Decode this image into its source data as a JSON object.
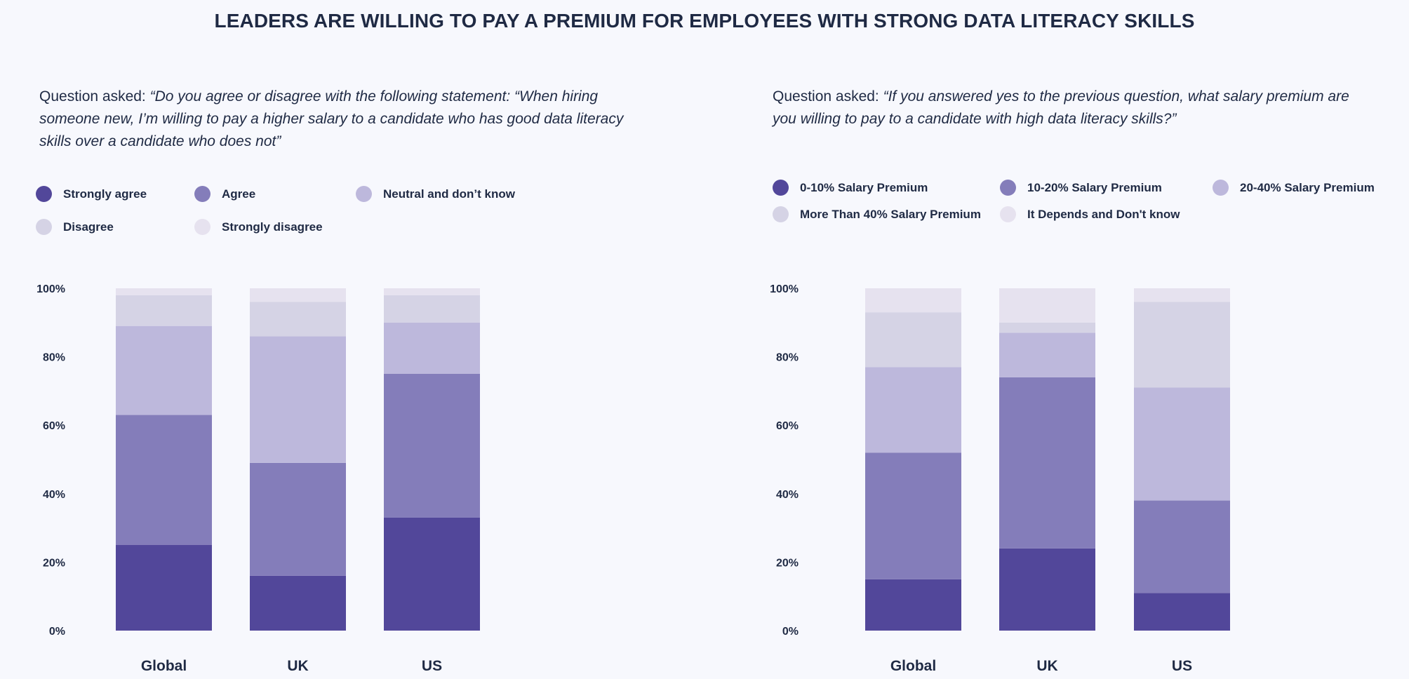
{
  "title": "LEADERS ARE WILLING TO PAY A PREMIUM FOR EMPLOYEES WITH STRONG DATA LITERACY SKILLS",
  "panels": [
    {
      "question_lead": "Question asked: ",
      "question_text": "“Do you agree or disagree with the following statement: “When hiring someone new, I’m willing to pay a higher salary to a candidate who has good data literacy skills over a candidate who does not”",
      "legend": [
        {
          "label": "Strongly agree",
          "color": "#52479a"
        },
        {
          "label": "Agree",
          "color": "#847dba"
        },
        {
          "label": "Neutral and don’t know",
          "color": "#bdb8dc"
        },
        {
          "label": "Disagree",
          "color": "#d5d3e5"
        },
        {
          "label": "Strongly disagree",
          "color": "#e6e2ef"
        }
      ]
    },
    {
      "question_lead": "Question asked: ",
      "question_text": "“If you answered yes to the previous question, what salary premium are you willing to pay to a candidate with high data literacy skills?”",
      "legend": [
        {
          "label": "0-10% Salary Premium",
          "color": "#52479a"
        },
        {
          "label": "10-20% Salary Premium",
          "color": "#847dba"
        },
        {
          "label": "20-40% Salary Premium",
          "color": "#bdb8dc"
        },
        {
          "label": "More Than 40% Salary Premium",
          "color": "#d5d3e5"
        },
        {
          "label": "It Depends and Don't know",
          "color": "#e6e2ef"
        }
      ]
    }
  ],
  "chart_data": [
    {
      "type": "bar",
      "stacked": true,
      "categories": [
        "Global",
        "UK",
        "US"
      ],
      "ylim": [
        0,
        100
      ],
      "yticks": [
        "0%",
        "20%",
        "40%",
        "60%",
        "80%",
        "100%"
      ],
      "grid": false,
      "series": [
        {
          "name": "Strongly agree",
          "color": "#52479a",
          "values": [
            25,
            16,
            33
          ]
        },
        {
          "name": "Agree",
          "color": "#847dba",
          "values": [
            38,
            33,
            42
          ]
        },
        {
          "name": "Neutral and don’t know",
          "color": "#bdb8dc",
          "values": [
            26,
            37,
            15
          ]
        },
        {
          "name": "Disagree",
          "color": "#d5d3e5",
          "values": [
            9,
            10,
            8
          ]
        },
        {
          "name": "Strongly disagree",
          "color": "#e6e2ef",
          "values": [
            2,
            4,
            2
          ]
        }
      ]
    },
    {
      "type": "bar",
      "stacked": true,
      "categories": [
        "Global",
        "UK",
        "US"
      ],
      "ylim": [
        0,
        100
      ],
      "yticks": [
        "0%",
        "20%",
        "40%",
        "60%",
        "80%",
        "100%"
      ],
      "grid": false,
      "series": [
        {
          "name": "0-10% Salary Premium",
          "color": "#52479a",
          "values": [
            15,
            24,
            11
          ]
        },
        {
          "name": "10-20% Salary Premium",
          "color": "#847dba",
          "values": [
            37,
            50,
            27
          ]
        },
        {
          "name": "20-40% Salary Premium",
          "color": "#bdb8dc",
          "values": [
            25,
            13,
            33
          ]
        },
        {
          "name": "More Than 40% Salary Premium",
          "color": "#d5d3e5",
          "values": [
            16,
            3,
            25
          ]
        },
        {
          "name": "It Depends and Don't know",
          "color": "#e6e2ef",
          "values": [
            7,
            10,
            4
          ]
        }
      ]
    }
  ]
}
